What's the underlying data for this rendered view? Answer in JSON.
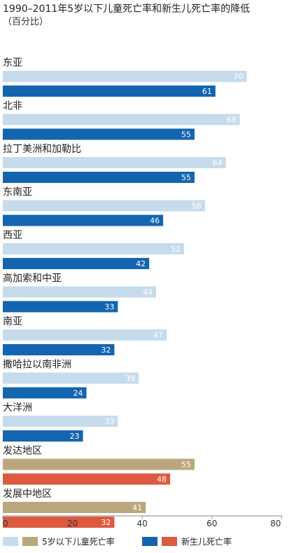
{
  "chart_data": {
    "type": "bar",
    "orientation": "horizontal",
    "title": "1990–2011年5岁以下儿童死亡率和新生儿死亡率的降低",
    "subtitle": "（百分比）",
    "categories": [
      "东亚",
      "北非",
      "拉丁美洲和加勒比",
      "东南亚",
      "西亚",
      "高加索和中亚",
      "南亚",
      "撒哈拉以南非洲",
      "大洋洲",
      "发达地区",
      "发展中地区"
    ],
    "series": [
      {
        "name": "5岁以下儿童死亡率",
        "values": [
          70,
          68,
          64,
          58,
          52,
          44,
          47,
          39,
          33,
          55,
          41
        ]
      },
      {
        "name": "新生儿死亡率",
        "values": [
          61,
          55,
          55,
          46,
          42,
          33,
          32,
          24,
          23,
          48,
          32
        ]
      }
    ],
    "xlim": [
      0,
      80
    ],
    "xticks": [
      0,
      20,
      40,
      60,
      80
    ],
    "grid": false,
    "legend_position": "bottom",
    "colors": {
      "regional_under5": "#c6dced",
      "regional_neonatal": "#1465b0",
      "aggregate_under5": "#bba77e",
      "aggregate_neonatal": "#dd5a40",
      "light_label": "#ffffff",
      "axis": "#888888"
    },
    "aggregate_categories": [
      "发达地区",
      "发展中地区"
    ]
  }
}
